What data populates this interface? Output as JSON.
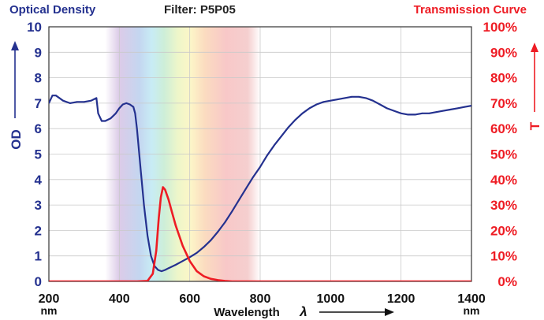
{
  "header": {
    "left_title": "Optical Density",
    "center_title": "Filter: P5P05",
    "right_title": "Transmission Curve"
  },
  "chart_data": {
    "type": "line",
    "title": "Filter: P5P05",
    "xlabel": "Wavelength",
    "xlabel_symbol": "λ",
    "x_unit": "nm",
    "ylabel_left": "OD",
    "ylabel_right": "T",
    "xlim": [
      200,
      1400
    ],
    "ylim_left": [
      0,
      10
    ],
    "ylim_right": [
      0,
      100
    ],
    "x_ticks": [
      "200",
      "400",
      "600",
      "800",
      "1000",
      "1200",
      "1400"
    ],
    "y_left_ticks": [
      "0",
      "1",
      "2",
      "3",
      "4",
      "5",
      "6",
      "7",
      "8",
      "9",
      "10"
    ],
    "y_right_ticks": [
      "0%",
      "10%",
      "20%",
      "30%",
      "40%",
      "50%",
      "60%",
      "70%",
      "80%",
      "90%",
      "100%"
    ],
    "grid": true,
    "visible_spectrum_band": [
      360,
      800
    ],
    "series": [
      {
        "name": "Optical Density",
        "axis": "left",
        "color": "#24318f",
        "x": [
          200,
          210,
          220,
          240,
          260,
          280,
          300,
          320,
          335,
          340,
          350,
          360,
          375,
          390,
          400,
          410,
          420,
          430,
          440,
          445,
          450,
          460,
          470,
          480,
          490,
          500,
          510,
          520,
          530,
          540,
          560,
          580,
          600,
          620,
          640,
          660,
          680,
          700,
          720,
          740,
          760,
          780,
          800,
          820,
          840,
          860,
          880,
          900,
          920,
          940,
          960,
          980,
          1000,
          1020,
          1040,
          1060,
          1080,
          1100,
          1120,
          1140,
          1160,
          1180,
          1200,
          1220,
          1240,
          1260,
          1280,
          1300,
          1320,
          1340,
          1360,
          1380,
          1400
        ],
        "values": [
          7.0,
          7.3,
          7.3,
          7.1,
          7.0,
          7.05,
          7.05,
          7.1,
          7.2,
          6.6,
          6.3,
          6.3,
          6.4,
          6.6,
          6.8,
          6.95,
          7.0,
          6.95,
          6.85,
          6.6,
          6.0,
          4.5,
          3.0,
          1.8,
          1.0,
          0.6,
          0.45,
          0.4,
          0.45,
          0.52,
          0.65,
          0.8,
          0.95,
          1.12,
          1.35,
          1.62,
          1.95,
          2.32,
          2.75,
          3.2,
          3.65,
          4.1,
          4.5,
          4.95,
          5.35,
          5.7,
          6.05,
          6.35,
          6.6,
          6.8,
          6.95,
          7.05,
          7.1,
          7.15,
          7.2,
          7.25,
          7.25,
          7.2,
          7.1,
          6.95,
          6.8,
          6.7,
          6.6,
          6.55,
          6.55,
          6.6,
          6.6,
          6.65,
          6.7,
          6.75,
          6.8,
          6.85,
          6.9
        ]
      },
      {
        "name": "Transmission Curve",
        "axis": "right",
        "color": "#ee1c24",
        "x": [
          200,
          450,
          480,
          495,
          505,
          512,
          518,
          524,
          530,
          540,
          550,
          560,
          580,
          600,
          620,
          640,
          660,
          680,
          700,
          720,
          760,
          800,
          1400
        ],
        "values": [
          0,
          0,
          0.2,
          3,
          12,
          25,
          33,
          37,
          36,
          32,
          27,
          22,
          14,
          8,
          4,
          2,
          1,
          0.5,
          0.2,
          0,
          0,
          0,
          0
        ]
      }
    ]
  }
}
